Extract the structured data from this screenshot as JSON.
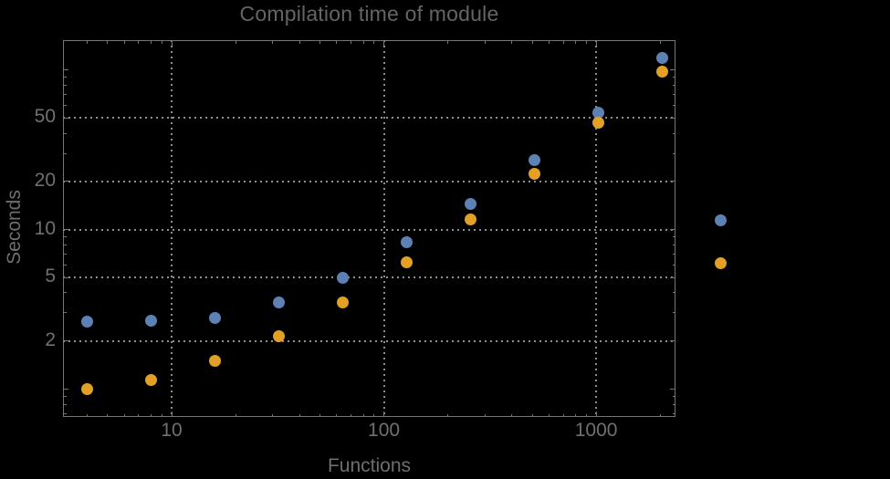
{
  "chart_data": {
    "type": "scatter",
    "title": "Compilation time of module",
    "xlabel": "Functions",
    "ylabel": "Seconds",
    "x_scale": "log",
    "y_scale": "log",
    "x_range": [
      3.1,
      2365
    ],
    "y_range": [
      0.67,
      158
    ],
    "grid": "dotted",
    "x": [
      4,
      8,
      16,
      32,
      64,
      128,
      256,
      512,
      1024,
      2048
    ],
    "series": [
      {
        "name": "blue-series",
        "color": "#5E81B5",
        "values": [
          2.65,
          2.67,
          2.8,
          3.5,
          5.0,
          8.3,
          14.4,
          27.4,
          54,
          120
        ]
      },
      {
        "name": "orange-series",
        "color": "#E2A025",
        "values": [
          1.0,
          1.14,
          1.5,
          2.15,
          3.5,
          6.2,
          11.5,
          22.5,
          46.5,
          98
        ]
      }
    ],
    "x_tick_values": [
      10,
      100,
      1000
    ],
    "x_tick_labels": [
      "10",
      "100",
      "1000"
    ],
    "y_tick_values": [
      50,
      20,
      10,
      5,
      2
    ],
    "y_tick_labels": [
      "50",
      "20",
      "10",
      "5",
      "2"
    ],
    "legend_position": "right-outside",
    "legend_markers": [
      {
        "series": "blue-series",
        "color": "#5E81B5"
      },
      {
        "series": "orange-series",
        "color": "#E2A025"
      }
    ]
  },
  "colors": {
    "background": "#000000",
    "frame": "#767676",
    "gridline": "#8e8e8e",
    "tick_label": "#707070",
    "axis_label": "#6e6e6e",
    "title": "#646464"
  }
}
